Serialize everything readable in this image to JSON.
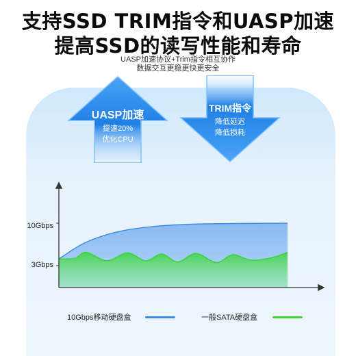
{
  "headline": {
    "line1": "支持SSD TRIM指令和UASP加速",
    "line2": "提高SSD的读写性能和寿命"
  },
  "subtitle": {
    "line1": "UASP加速协议+Trim指令相互协作",
    "line2": "数据交互更稳更快更安全"
  },
  "uasp_arrow": {
    "title": "UASP加速",
    "lines": [
      "提速20%",
      "优化CPU"
    ],
    "direction": "up",
    "icon": "arrow-up-icon"
  },
  "trim_arrow": {
    "title": "TRIM指令",
    "lines": [
      "降低延迟",
      "降低损耗"
    ],
    "direction": "down",
    "icon": "arrow-down-icon"
  },
  "colors": {
    "blue_series": "#3d8be8",
    "green_series": "#3ad43a",
    "arrow_blue": "#1e7fe6"
  },
  "chart_data": {
    "type": "area",
    "y_tick_labels": [
      "10Gbps",
      "3Gbps"
    ],
    "y_ticks": [
      10,
      3
    ],
    "ylim": [
      0,
      12
    ],
    "x_range": [
      0,
      10
    ],
    "series": [
      {
        "name": "10Gbps移动硬盘盒",
        "color": "#3d8be8",
        "x": [
          0,
          1,
          2,
          3,
          4,
          5,
          6,
          7,
          8,
          9,
          10
        ],
        "values": [
          4.1,
          6.5,
          8.0,
          8.9,
          9.4,
          9.7,
          9.85,
          9.92,
          9.96,
          9.98,
          10.0
        ]
      },
      {
        "name": "一般SATA硬盘盒",
        "color": "#3ad43a",
        "x": [
          0,
          0.7,
          1.2,
          2.1,
          3.0,
          3.8,
          4.5,
          5.2,
          6.0,
          6.9,
          7.6,
          8.4,
          9.3,
          10
        ],
        "values": [
          4.1,
          4.2,
          5.2,
          3.8,
          5.1,
          3.8,
          4.9,
          3.6,
          5.0,
          3.5,
          4.8,
          3.9,
          4.3,
          5.2
        ]
      }
    ]
  },
  "legend": {
    "items": [
      {
        "label": "10Gbps移动硬盘盒",
        "color": "#3d8be8"
      },
      {
        "label": "一般SATA硬盘盒",
        "color": "#3ad43a"
      }
    ]
  }
}
